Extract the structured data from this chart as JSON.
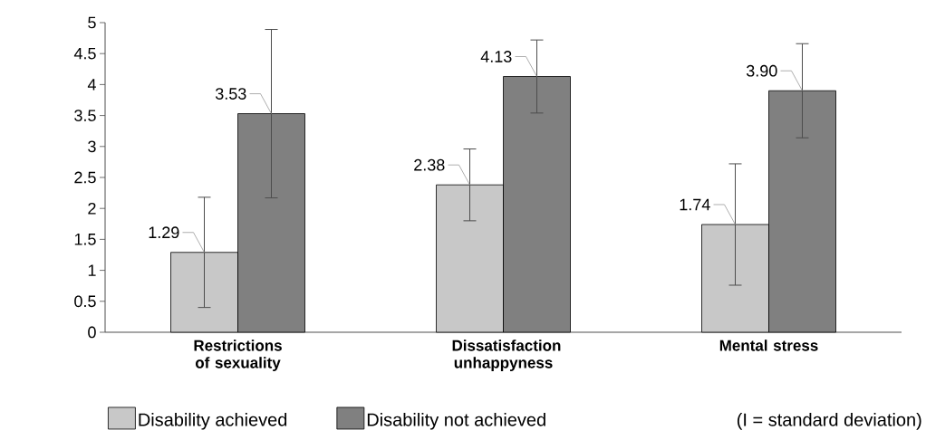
{
  "chart_data": {
    "type": "bar",
    "categories": [
      "Restrictions of sexuality",
      "Dissatisfaction unhappyness",
      "Mental stress"
    ],
    "series": [
      {
        "name": "Disability achieved",
        "color": "#c8c8c8",
        "values": [
          1.29,
          2.38,
          1.74
        ],
        "errors": [
          0.89,
          0.58,
          0.98
        ],
        "value_labels": [
          "1.29",
          "2.38",
          "1.74"
        ]
      },
      {
        "name": "Disability not achieved",
        "color": "#808080",
        "values": [
          3.53,
          4.13,
          3.9
        ],
        "errors": [
          1.36,
          0.59,
          0.76
        ],
        "value_labels": [
          "3.53",
          "4.13",
          "3.90"
        ]
      }
    ],
    "ylim": [
      0,
      5
    ],
    "yticks": [
      0,
      0.5,
      1,
      1.5,
      2,
      2.5,
      3,
      3.5,
      4,
      4.5,
      5
    ],
    "grid": false,
    "legend": "bottom",
    "annotations": [
      "(I = standard deviation)"
    ]
  }
}
